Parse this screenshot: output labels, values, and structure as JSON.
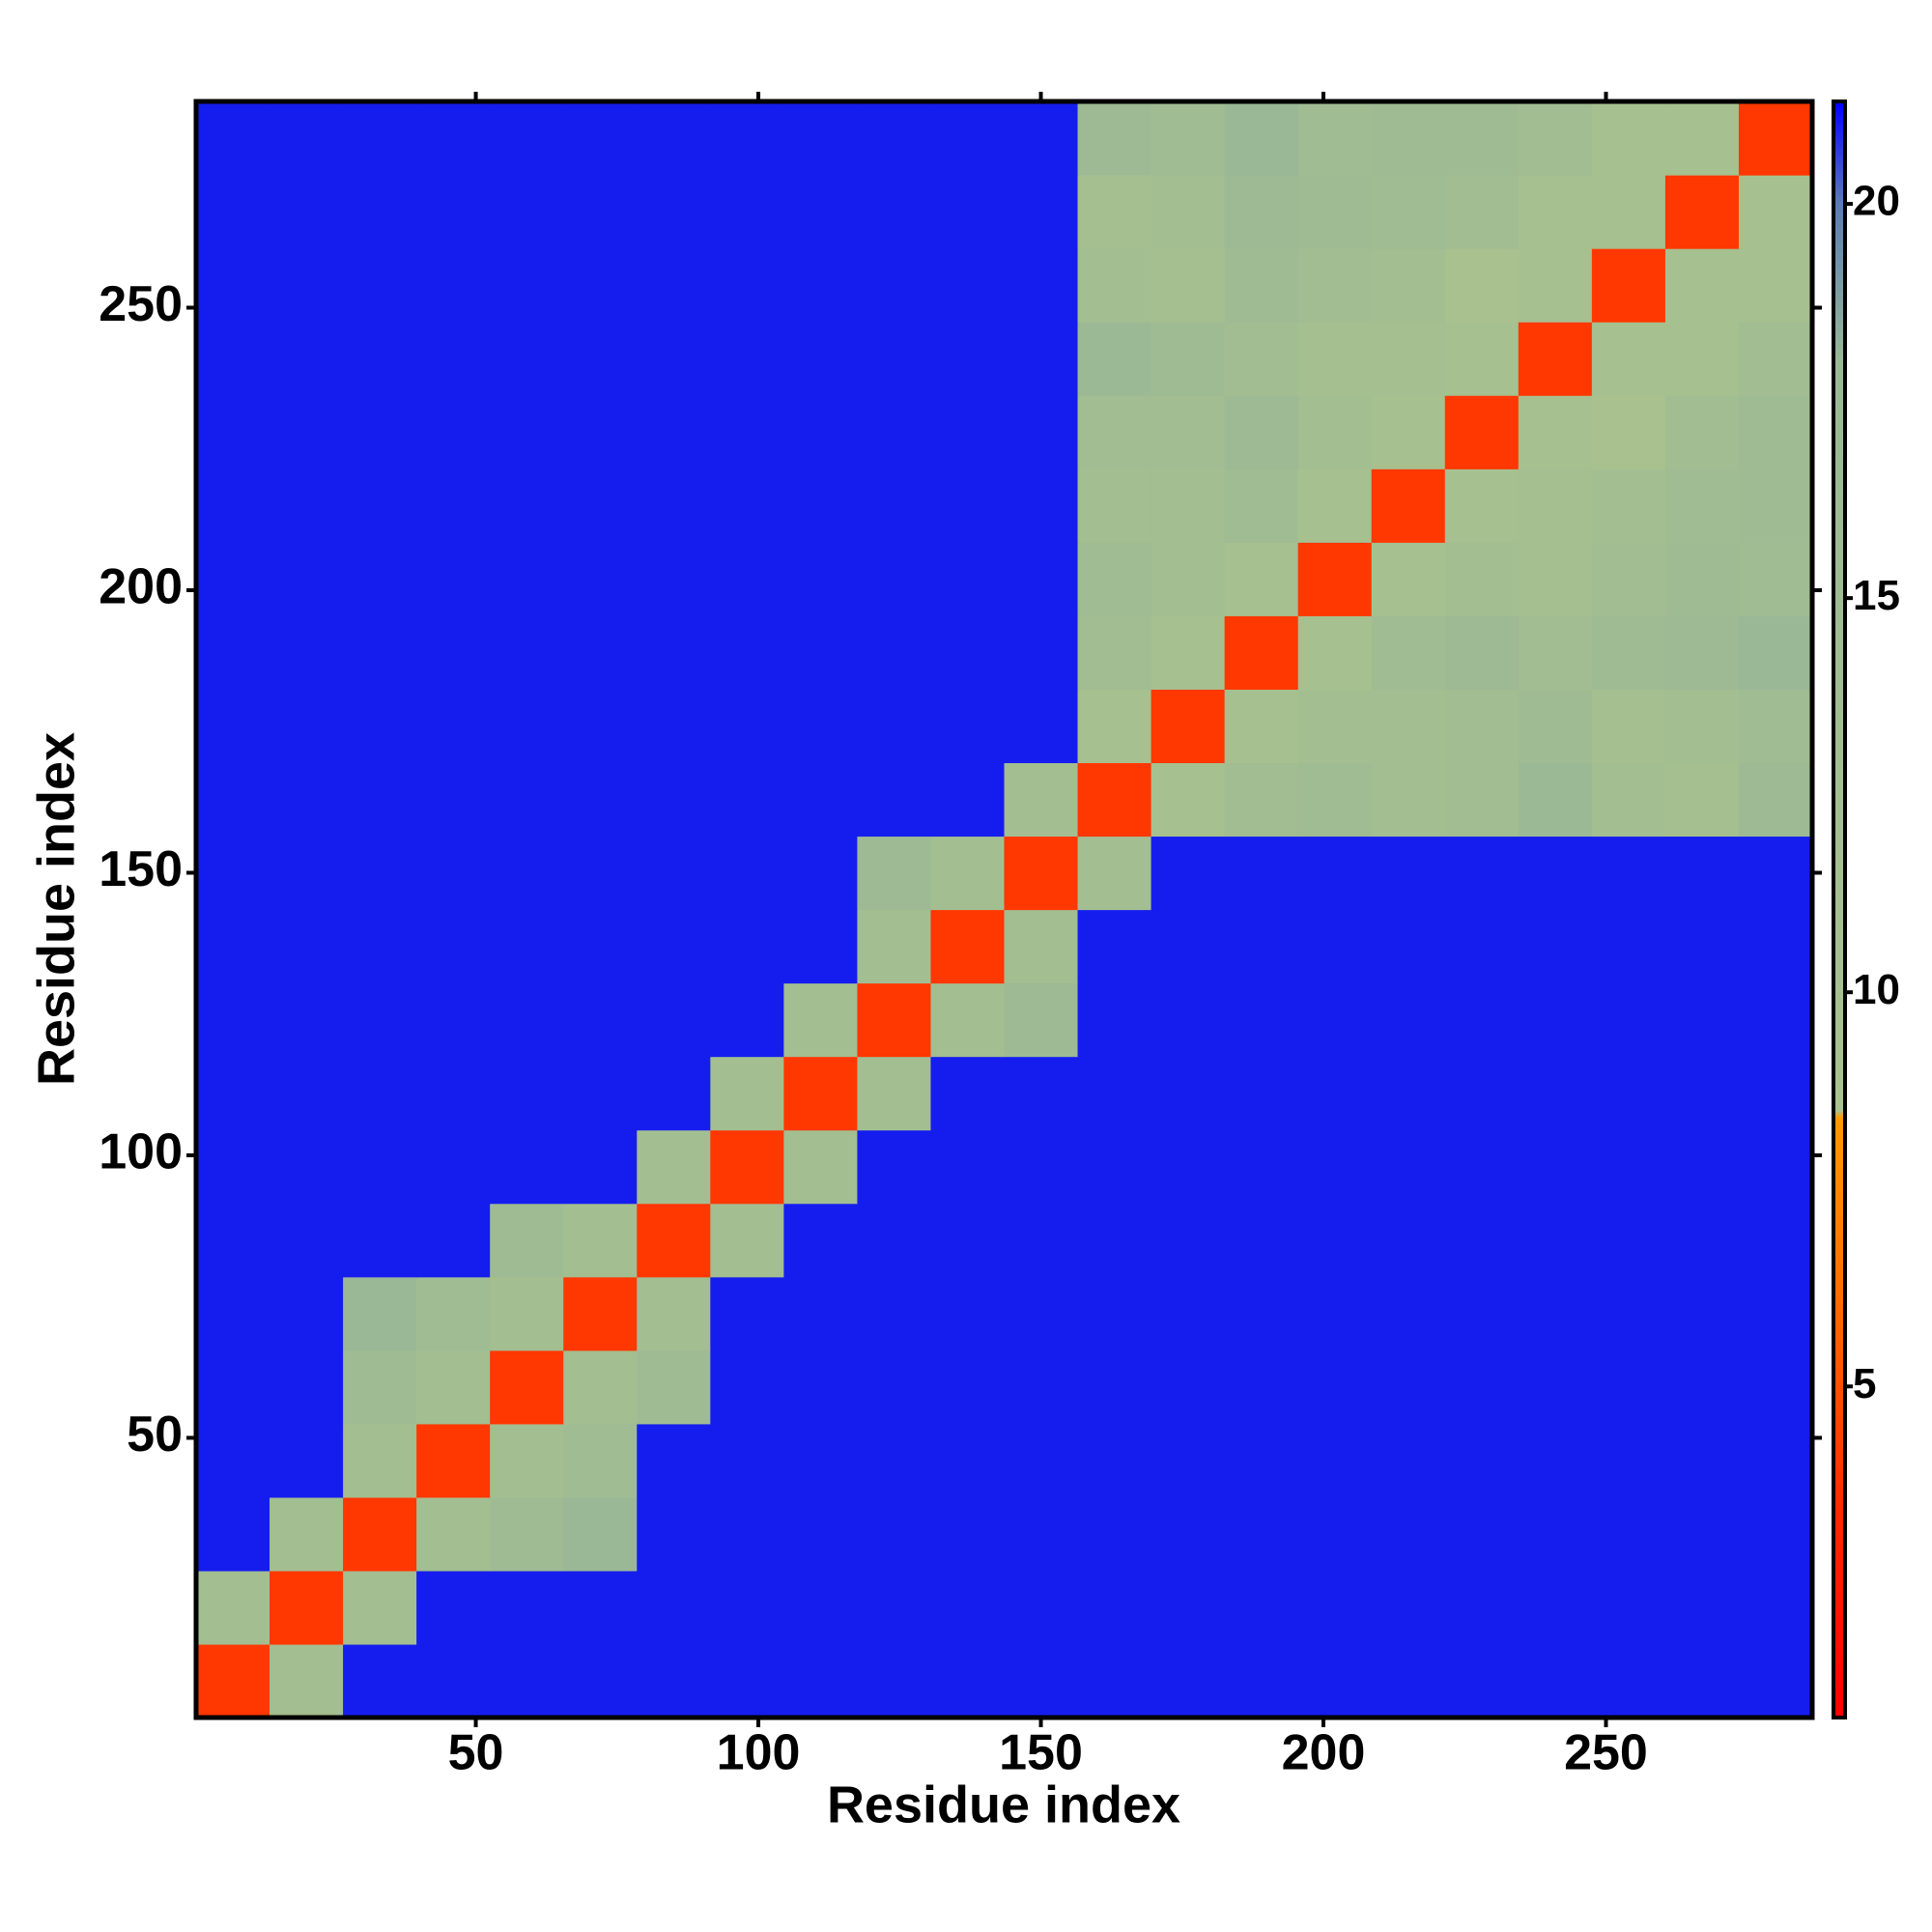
{
  "chart_data": {
    "type": "heatmap",
    "xlabel": "Residue index",
    "ylabel": "Residue index",
    "x": [
      7,
      20,
      33,
      46,
      59,
      72,
      85,
      98,
      111,
      124,
      137,
      150,
      163,
      176,
      189,
      202,
      215,
      228,
      241,
      254,
      267,
      280
    ],
    "y": [
      7,
      20,
      33,
      46,
      59,
      72,
      85,
      98,
      111,
      124,
      137,
      150,
      163,
      176,
      189,
      202,
      215,
      228,
      241,
      254,
      267,
      280
    ],
    "cell_size": 13,
    "z": [
      [
        4,
        12,
        21,
        21,
        21,
        21,
        21,
        21,
        21,
        21,
        21,
        21,
        21,
        21,
        21,
        21,
        21,
        21,
        21,
        21,
        21,
        21
      ],
      [
        12,
        4,
        12,
        21,
        21,
        21,
        21,
        21,
        21,
        21,
        21,
        21,
        21,
        21,
        21,
        21,
        21,
        21,
        21,
        21,
        21,
        21
      ],
      [
        21,
        12,
        4,
        12,
        15,
        18,
        21,
        21,
        21,
        21,
        21,
        21,
        21,
        21,
        21,
        21,
        21,
        21,
        21,
        21,
        21,
        21
      ],
      [
        21,
        21,
        12,
        4,
        12,
        14,
        21,
        21,
        21,
        21,
        21,
        21,
        21,
        21,
        21,
        21,
        21,
        21,
        21,
        21,
        21,
        21
      ],
      [
        21,
        21,
        15,
        12,
        4,
        12,
        15,
        21,
        21,
        21,
        21,
        21,
        21,
        21,
        21,
        21,
        21,
        21,
        21,
        21,
        21,
        21
      ],
      [
        21,
        21,
        18,
        14,
        12,
        4,
        12,
        21,
        21,
        21,
        21,
        21,
        21,
        21,
        21,
        21,
        21,
        21,
        21,
        21,
        21,
        21
      ],
      [
        21,
        21,
        21,
        21,
        15,
        12,
        4,
        12,
        21,
        21,
        21,
        21,
        21,
        21,
        21,
        21,
        21,
        21,
        21,
        21,
        21,
        21
      ],
      [
        21,
        21,
        21,
        21,
        21,
        21,
        12,
        4,
        12,
        21,
        21,
        21,
        21,
        21,
        21,
        21,
        21,
        21,
        21,
        21,
        21,
        21
      ],
      [
        21,
        21,
        21,
        21,
        21,
        21,
        21,
        12,
        4,
        12,
        21,
        21,
        21,
        21,
        21,
        21,
        21,
        21,
        21,
        21,
        21,
        21
      ],
      [
        21,
        21,
        21,
        21,
        21,
        21,
        21,
        21,
        12,
        4,
        12,
        16,
        21,
        21,
        21,
        21,
        21,
        21,
        21,
        21,
        21,
        21
      ],
      [
        21,
        21,
        21,
        21,
        21,
        21,
        21,
        21,
        21,
        12,
        4,
        12,
        21,
        21,
        21,
        21,
        21,
        21,
        21,
        21,
        21,
        21
      ],
      [
        21,
        21,
        21,
        21,
        21,
        21,
        21,
        21,
        21,
        16,
        12,
        4,
        12,
        21,
        21,
        21,
        21,
        21,
        21,
        21,
        21,
        21
      ],
      [
        21,
        21,
        21,
        21,
        21,
        21,
        21,
        21,
        21,
        21,
        21,
        12,
        4,
        10,
        13,
        14,
        12,
        13,
        17,
        12,
        11,
        16
      ],
      [
        21,
        21,
        21,
        21,
        21,
        21,
        21,
        21,
        21,
        21,
        21,
        21,
        10,
        4,
        10,
        12,
        12,
        13,
        15,
        11,
        12,
        14
      ],
      [
        21,
        21,
        21,
        21,
        21,
        21,
        21,
        21,
        21,
        21,
        21,
        21,
        13,
        10,
        4,
        10,
        14,
        16,
        13,
        15,
        16,
        18
      ],
      [
        21,
        21,
        21,
        21,
        21,
        21,
        21,
        21,
        21,
        21,
        21,
        21,
        14,
        12,
        10,
        4,
        10,
        12,
        11,
        13,
        15,
        14
      ],
      [
        21,
        21,
        21,
        21,
        21,
        21,
        21,
        21,
        21,
        21,
        21,
        21,
        12,
        12,
        14,
        10,
        4,
        10,
        11,
        12,
        14,
        15
      ],
      [
        21,
        21,
        21,
        21,
        21,
        21,
        21,
        21,
        21,
        21,
        21,
        21,
        13,
        13,
        16,
        12,
        10,
        4,
        10,
        9,
        13,
        15
      ],
      [
        21,
        21,
        21,
        21,
        21,
        21,
        21,
        21,
        21,
        21,
        21,
        21,
        17,
        15,
        13,
        11,
        11,
        10,
        4,
        10,
        10,
        13
      ],
      [
        21,
        21,
        21,
        21,
        21,
        21,
        21,
        21,
        21,
        21,
        21,
        21,
        12,
        11,
        15,
        13,
        12,
        9,
        10,
        4,
        10,
        10
      ],
      [
        21,
        21,
        21,
        21,
        21,
        21,
        21,
        21,
        21,
        21,
        21,
        21,
        11,
        12,
        16,
        15,
        14,
        13,
        10,
        10,
        4,
        10
      ],
      [
        21,
        21,
        21,
        21,
        21,
        21,
        21,
        21,
        21,
        21,
        21,
        21,
        16,
        14,
        18,
        14,
        15,
        15,
        13,
        10,
        10,
        4
      ]
    ],
    "xlim": [
      0.5,
      286.5
    ],
    "ylim": [
      0.5,
      286.5
    ],
    "xticks": [
      50,
      100,
      150,
      200,
      250
    ],
    "yticks": [
      50,
      100,
      150,
      200,
      250
    ],
    "zlim": [
      0.8,
      21.3
    ],
    "zticks": [
      5,
      10,
      15,
      20
    ],
    "colorscale": [
      [
        0.8,
        "#ff0000"
      ],
      [
        3.5,
        "#ff2a00"
      ],
      [
        6,
        "#ff6a00"
      ],
      [
        8.4,
        "#ff9a00"
      ],
      [
        8.5,
        "#a9c28e"
      ],
      [
        18,
        "#9ab896"
      ],
      [
        20,
        "#5a7cb4"
      ],
      [
        21.3,
        "#0000ff"
      ]
    ]
  }
}
